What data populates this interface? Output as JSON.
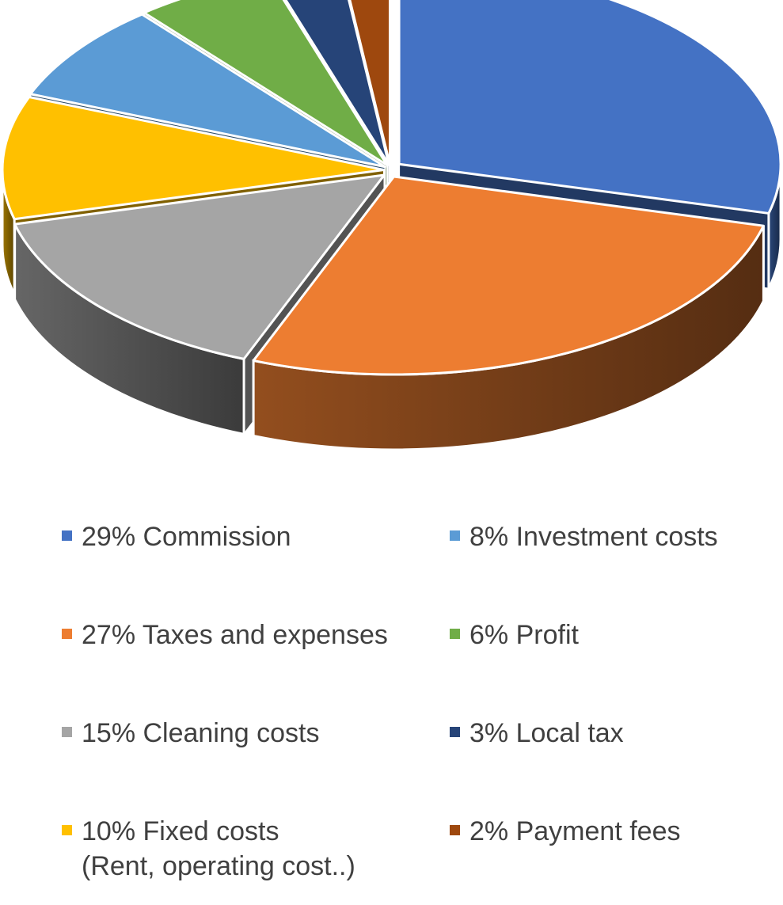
{
  "chart_data": {
    "type": "pie",
    "style": "3d-exploded",
    "slices": [
      {
        "label": "29% Commission",
        "sublabel": "",
        "value": 29,
        "color": "#4472C4"
      },
      {
        "label": "27% Taxes and expenses",
        "sublabel": "",
        "value": 27,
        "color": "#ED7D31"
      },
      {
        "label": "15% Cleaning costs",
        "sublabel": "",
        "value": 15,
        "color": "#A5A5A5"
      },
      {
        "label": "10% Fixed costs",
        "sublabel": "(Rent, operating cost..)",
        "value": 10,
        "color": "#FFC000"
      },
      {
        "label": "8% Investment costs",
        "sublabel": "",
        "value": 8,
        "color": "#5B9BD5"
      },
      {
        "label": "6% Profit",
        "sublabel": "",
        "value": 6,
        "color": "#70AD47"
      },
      {
        "label": "3% Local tax",
        "sublabel": "",
        "value": 3,
        "color": "#264478"
      },
      {
        "label": "2% Payment fees",
        "sublabel": "",
        "value": 2,
        "color": "#9E480E"
      }
    ],
    "legend_position": "bottom",
    "legend_columns": 2
  }
}
